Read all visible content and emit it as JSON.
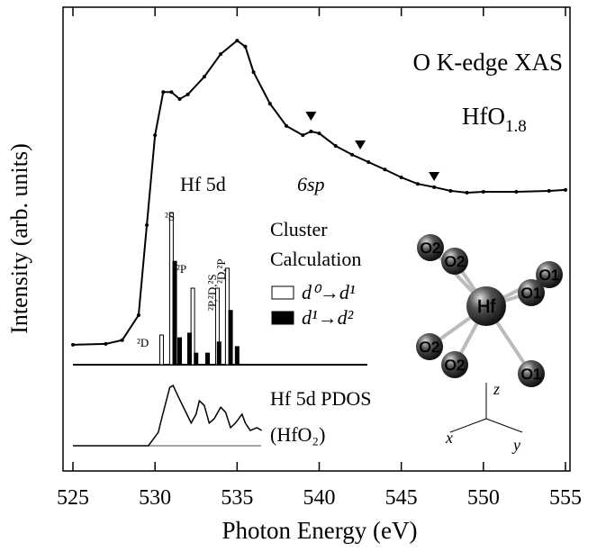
{
  "chart_data": {
    "type": "line",
    "xlabel": "Photon Energy (eV)",
    "ylabel": "Intensity (arb. units)",
    "xlim": [
      525,
      555
    ],
    "ylim": [
      0,
      100
    ],
    "xticks": [
      525,
      530,
      535,
      540,
      545,
      550,
      555
    ],
    "xas": {
      "x": [
        525,
        527,
        528,
        529,
        529.5,
        530,
        530.5,
        531,
        531.5,
        532,
        533,
        534,
        535,
        535.5,
        536,
        537,
        538,
        539,
        539.5,
        540,
        541,
        542,
        543,
        544,
        545,
        546,
        547,
        548,
        549,
        550,
        552,
        554,
        555
      ],
      "values": [
        27.2,
        27.4,
        28.2,
        33.6,
        53.0,
        72.4,
        81.7,
        81.7,
        80.2,
        81.2,
        85.0,
        89.9,
        92.8,
        91.5,
        86.0,
        79.2,
        74.4,
        72.4,
        73.2,
        72.8,
        70.1,
        68.2,
        66.6,
        65.0,
        63.3,
        61.9,
        61.2,
        60.4,
        60.0,
        60.2,
        60.2,
        60.4,
        60.6
      ],
      "color": "#000000"
    },
    "markers": {
      "x": [
        539.5,
        542.5,
        547
      ],
      "values": [
        76.3,
        70.1,
        63.3
      ]
    },
    "cluster": {
      "title": "Cluster",
      "title2": "Calculation",
      "series": [
        {
          "name": "d⁰→d¹",
          "color": "#ffffff",
          "x": [
            530.4,
            531.0,
            532.3,
            533.8,
            534.4
          ],
          "values": [
            6.4,
            32.8,
            16.5,
            16.5,
            20.8
          ]
        },
        {
          "name": "d¹→d²",
          "color": "#000000",
          "x": [
            531.2,
            531.5,
            532.1,
            532.5,
            533.2,
            533.9,
            534.6,
            535.0
          ],
          "values": [
            22.3,
            5.8,
            6.8,
            2.5,
            2.5,
            4.9,
            11.7,
            3.9
          ]
        }
      ],
      "peak_labels": [
        "²D",
        "²S",
        "²P",
        "²P,²D,²S",
        "²D,²P"
      ]
    },
    "pdos": {
      "label": "Hf 5d PDOS",
      "label2": "(HfO₂)",
      "x": [
        525,
        529,
        529.6,
        530.2,
        530.4,
        530.9,
        531.1,
        531.4,
        531.8,
        532.2,
        532.5,
        532.7,
        533,
        533.3,
        533.6,
        534,
        534.3,
        534.6,
        534.9,
        535.3,
        535.5,
        535.8,
        536.2,
        536.5
      ],
      "values": [
        0,
        0,
        0,
        2.9,
        5.8,
        12.6,
        13.0,
        10.7,
        7.8,
        4.9,
        6.8,
        9.7,
        8.7,
        4.9,
        5.8,
        8.3,
        7.2,
        3.9,
        4.9,
        6.8,
        4.9,
        3.3,
        3.9,
        3.3
      ]
    },
    "annotations": {
      "title": "O K-edge XAS",
      "sample": "HfO",
      "sample_sub": "1.8",
      "hf5d": "Hf 5d",
      "sp": "6sp"
    }
  },
  "diagram": {
    "center": "Hf",
    "atoms": [
      "O2",
      "O2",
      "O1",
      "O1",
      "O2",
      "O2",
      "O1"
    ],
    "axes": [
      "x",
      "y",
      "z"
    ]
  }
}
